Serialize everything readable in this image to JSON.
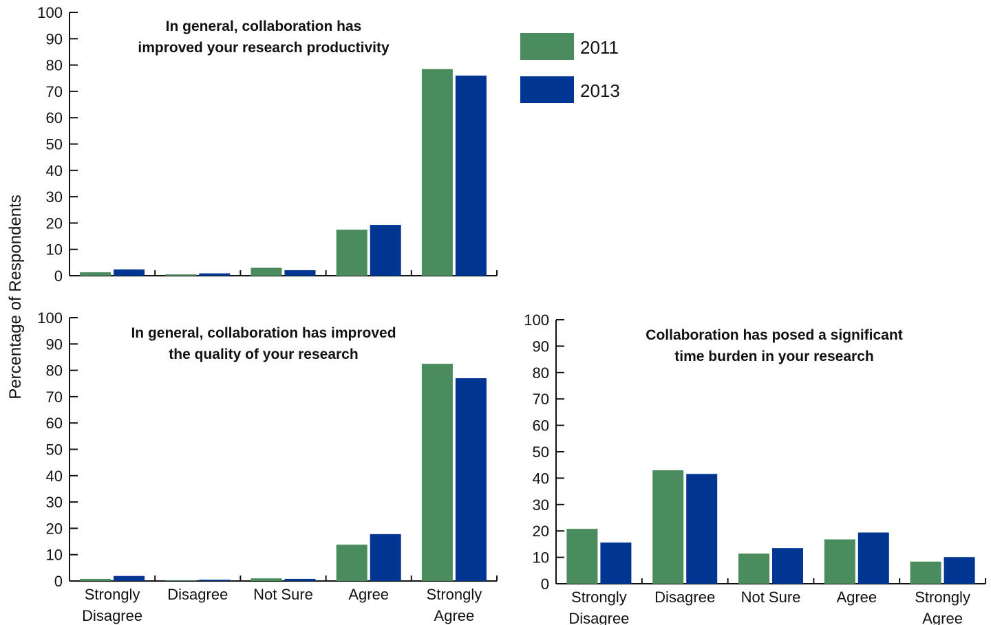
{
  "y_axis_label": "Percentage of Respondents",
  "legend": [
    {
      "label": "2011",
      "color": "#4a8c5e"
    },
    {
      "label": "2013",
      "color": "#003591"
    }
  ],
  "chart_data": [
    {
      "type": "bar",
      "title_lines": [
        "In general, collaboration has",
        "improved your research productivity"
      ],
      "categories": [
        [
          "Strongly",
          "Disagree"
        ],
        [
          "Disagree"
        ],
        [
          "Not Sure"
        ],
        [
          "Agree"
        ],
        [
          "Strongly",
          "Agree"
        ]
      ],
      "show_category_labels": false,
      "ylim": [
        0,
        100
      ],
      "yticks": [
        0,
        10,
        20,
        30,
        40,
        50,
        60,
        70,
        80,
        90,
        100
      ],
      "series": [
        {
          "name": "2011",
          "values": [
            1.3,
            0.5,
            3.0,
            17.5,
            78.5
          ]
        },
        {
          "name": "2013",
          "values": [
            2.4,
            0.9,
            2.1,
            19.3,
            76.0
          ]
        }
      ]
    },
    {
      "type": "bar",
      "title_lines": [
        "In general, collaboration has improved",
        "the quality of your research"
      ],
      "categories": [
        [
          "Strongly",
          "Disagree"
        ],
        [
          "Disagree"
        ],
        [
          "Not Sure"
        ],
        [
          "Agree"
        ],
        [
          "Strongly",
          "Agree"
        ]
      ],
      "show_category_labels": true,
      "ylim": [
        0,
        100
      ],
      "yticks": [
        0,
        10,
        20,
        30,
        40,
        50,
        60,
        70,
        80,
        90,
        100
      ],
      "series": [
        {
          "name": "2011",
          "values": [
            0.8,
            0.2,
            1.0,
            13.8,
            82.5
          ]
        },
        {
          "name": "2013",
          "values": [
            1.9,
            0.5,
            0.8,
            17.8,
            77.0
          ]
        }
      ]
    },
    {
      "type": "bar",
      "title_lines": [
        "Collaboration has posed a significant",
        "time burden in your research"
      ],
      "categories": [
        [
          "Strongly",
          "Disagree"
        ],
        [
          "Disagree"
        ],
        [
          "Not Sure"
        ],
        [
          "Agree"
        ],
        [
          "Strongly",
          "Agree"
        ]
      ],
      "show_category_labels": true,
      "ylim": [
        0,
        100
      ],
      "yticks": [
        0,
        10,
        20,
        30,
        40,
        50,
        60,
        70,
        80,
        90,
        100
      ],
      "series": [
        {
          "name": "2011",
          "values": [
            20.8,
            43.0,
            11.4,
            16.8,
            8.4
          ]
        },
        {
          "name": "2013",
          "values": [
            15.6,
            41.6,
            13.5,
            19.4,
            10.1
          ]
        }
      ]
    }
  ]
}
